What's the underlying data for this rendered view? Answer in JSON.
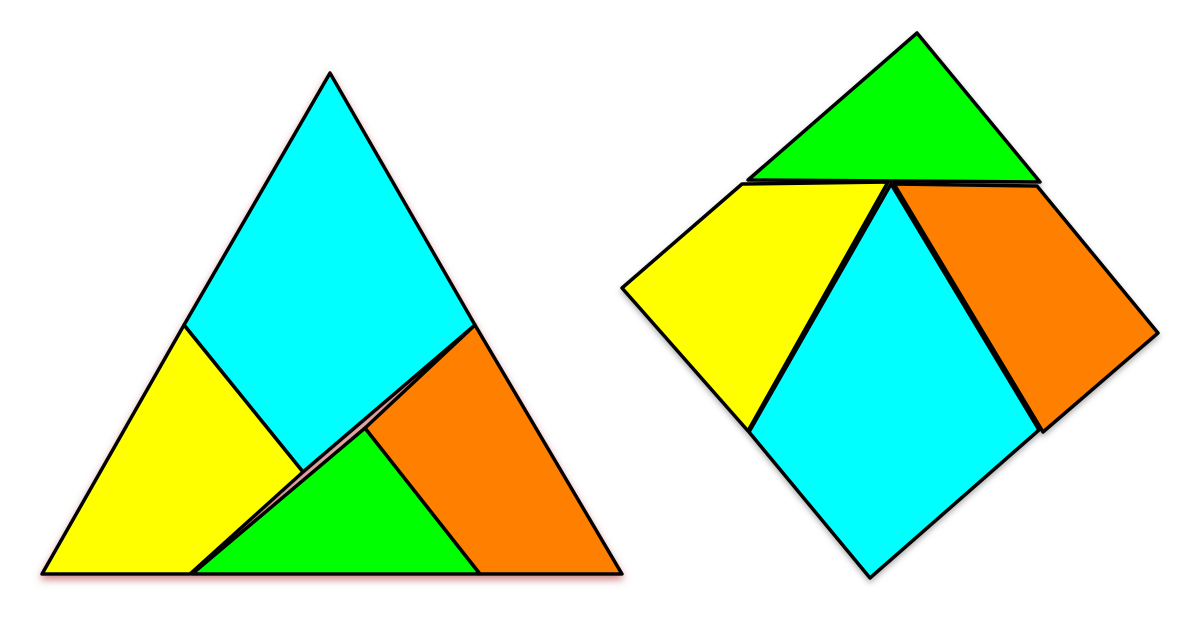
{
  "diagram": {
    "description_visible_text": "",
    "colors": {
      "cyan": "#00FFFF",
      "yellow": "#FFFF00",
      "green": "#00FF00",
      "orange": "#FF8000",
      "outline": "#000000",
      "shadow": "#C06060"
    },
    "figures": [
      {
        "name": "triangle-arrangement",
        "pieces": [
          {
            "name": "cyan-rhombus",
            "color": "cyan"
          },
          {
            "name": "yellow-quadrilateral",
            "color": "yellow"
          },
          {
            "name": "green-triangle",
            "color": "green"
          },
          {
            "name": "orange-quadrilateral",
            "color": "orange"
          }
        ]
      },
      {
        "name": "square-arrangement",
        "pieces": [
          {
            "name": "green-triangle",
            "color": "green"
          },
          {
            "name": "yellow-quadrilateral",
            "color": "yellow"
          },
          {
            "name": "cyan-rhombus",
            "color": "cyan"
          },
          {
            "name": "orange-quadrilateral",
            "color": "orange"
          }
        ]
      }
    ]
  }
}
